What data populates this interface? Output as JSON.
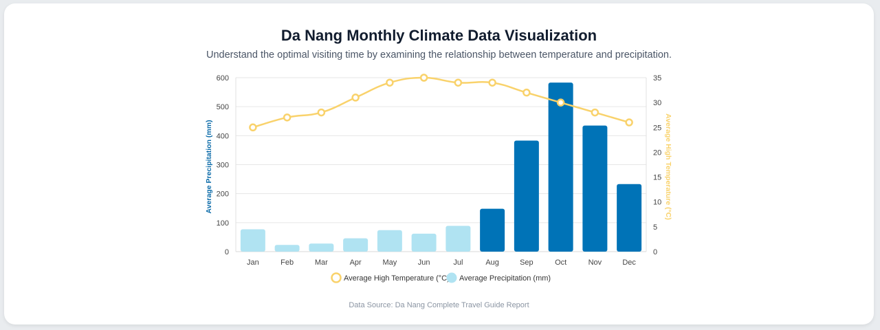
{
  "page": {
    "title": "Da Nang Monthly Climate Data Visualization",
    "subtitle": "Understand the optimal visiting time by examining the relationship between temperature and precipitation.",
    "source": "Data Source: Da Nang Complete Travel Guide Report"
  },
  "chart_data": {
    "type": "bar",
    "categories": [
      "Jan",
      "Feb",
      "Mar",
      "Apr",
      "May",
      "Jun",
      "Jul",
      "Aug",
      "Sep",
      "Oct",
      "Nov",
      "Dec"
    ],
    "series": [
      {
        "name": "Average High Temperature (°C)",
        "type": "line",
        "axis": "right",
        "values": [
          25,
          27,
          28,
          31,
          34,
          35,
          34,
          34,
          32,
          30,
          28,
          26
        ]
      },
      {
        "name": "Average Precipitation (mm)",
        "type": "bar",
        "axis": "left",
        "values": [
          77,
          23,
          28,
          46,
          74,
          62,
          89,
          148,
          383,
          583,
          435,
          233
        ]
      }
    ],
    "ylabel": "Average Precipitation (mm)",
    "ylabel_right": "Average High Temperature (°C)",
    "ylim": [
      0,
      600
    ],
    "y_ticks": [
      0,
      100,
      200,
      300,
      400,
      500,
      600
    ],
    "ylim_right": [
      0,
      35
    ],
    "y_ticks_right": [
      0,
      5,
      10,
      15,
      20,
      25,
      30,
      35
    ],
    "grid": true,
    "legend_position": "bottom",
    "colors": {
      "bar_dry": "#b0e3f2",
      "bar_wet": "#0073b7",
      "line": "#f9d26b",
      "left_axis_title": "#0a6aa8",
      "right_axis_title": "#f9d26b"
    },
    "wet_threshold": 100
  }
}
